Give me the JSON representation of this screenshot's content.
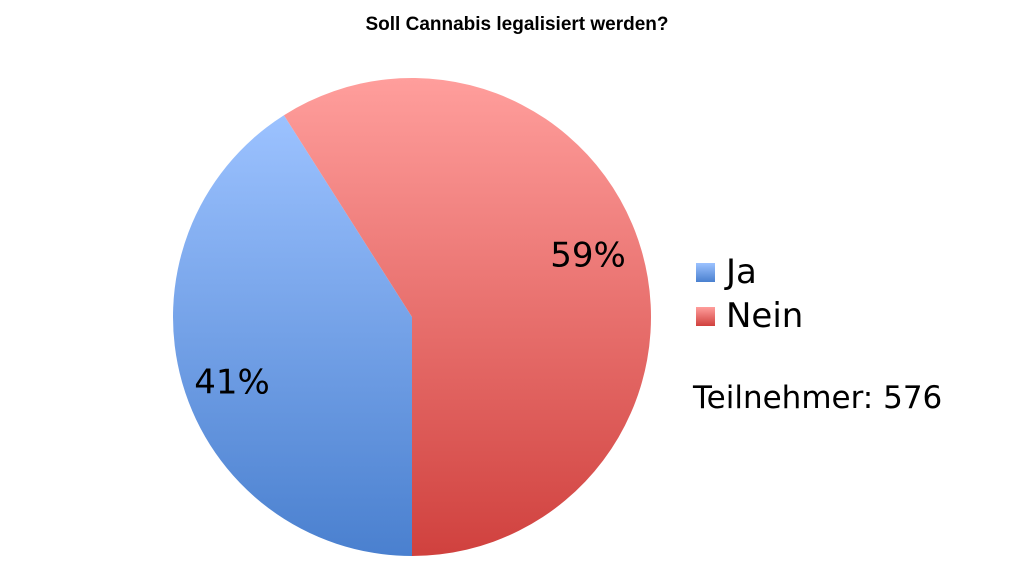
{
  "chart_data": {
    "type": "pie",
    "title": "Soll Cannabis legalisiert werden?",
    "slices": [
      {
        "label": "Ja",
        "value": 41,
        "display": "41%",
        "color": "#4a80cf",
        "color_light": "#9cc2ff"
      },
      {
        "label": "Nein",
        "value": 59,
        "display": "59%",
        "color": "#d0413e",
        "color_light": "#ff9e9c"
      }
    ],
    "legend_position": "right",
    "note": "Teilnehmer: 576"
  }
}
